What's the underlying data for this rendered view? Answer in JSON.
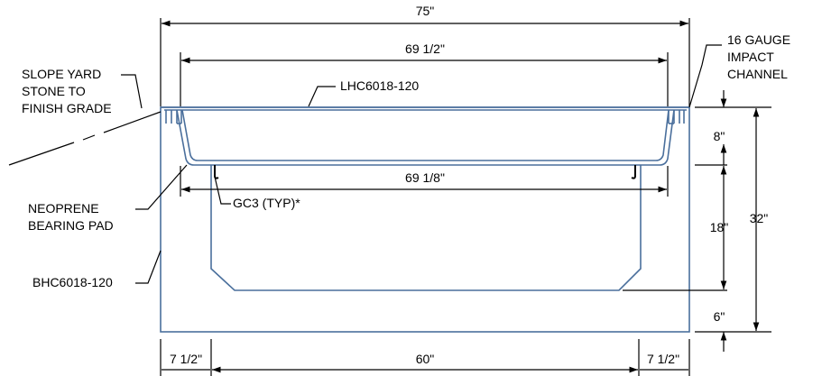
{
  "dimensions": {
    "overall_width": "75\"",
    "inner_top_width": "69 1/2\"",
    "inner_lower_width": "69 1/8\"",
    "left_wall": "7 1/2\"",
    "channel_width": "60\"",
    "right_wall": "7 1/2\"",
    "upper_height": "8\"",
    "middle_height": "18\"",
    "base_height": "6\"",
    "total_height": "32\""
  },
  "callouts": {
    "slope_line1": "SLOPE YARD",
    "slope_line2": "STONE TO",
    "slope_line3": "FINISH GRADE",
    "lid_part": "LHC6018-120",
    "impact_line1": "16 GAUGE",
    "impact_line2": "IMPACT",
    "impact_line3": "CHANNEL",
    "pad_line1": "NEOPRENE",
    "pad_line2": "BEARING PAD",
    "clip": "GC3 (TYP)*",
    "base_part": "BHC6018-120"
  }
}
